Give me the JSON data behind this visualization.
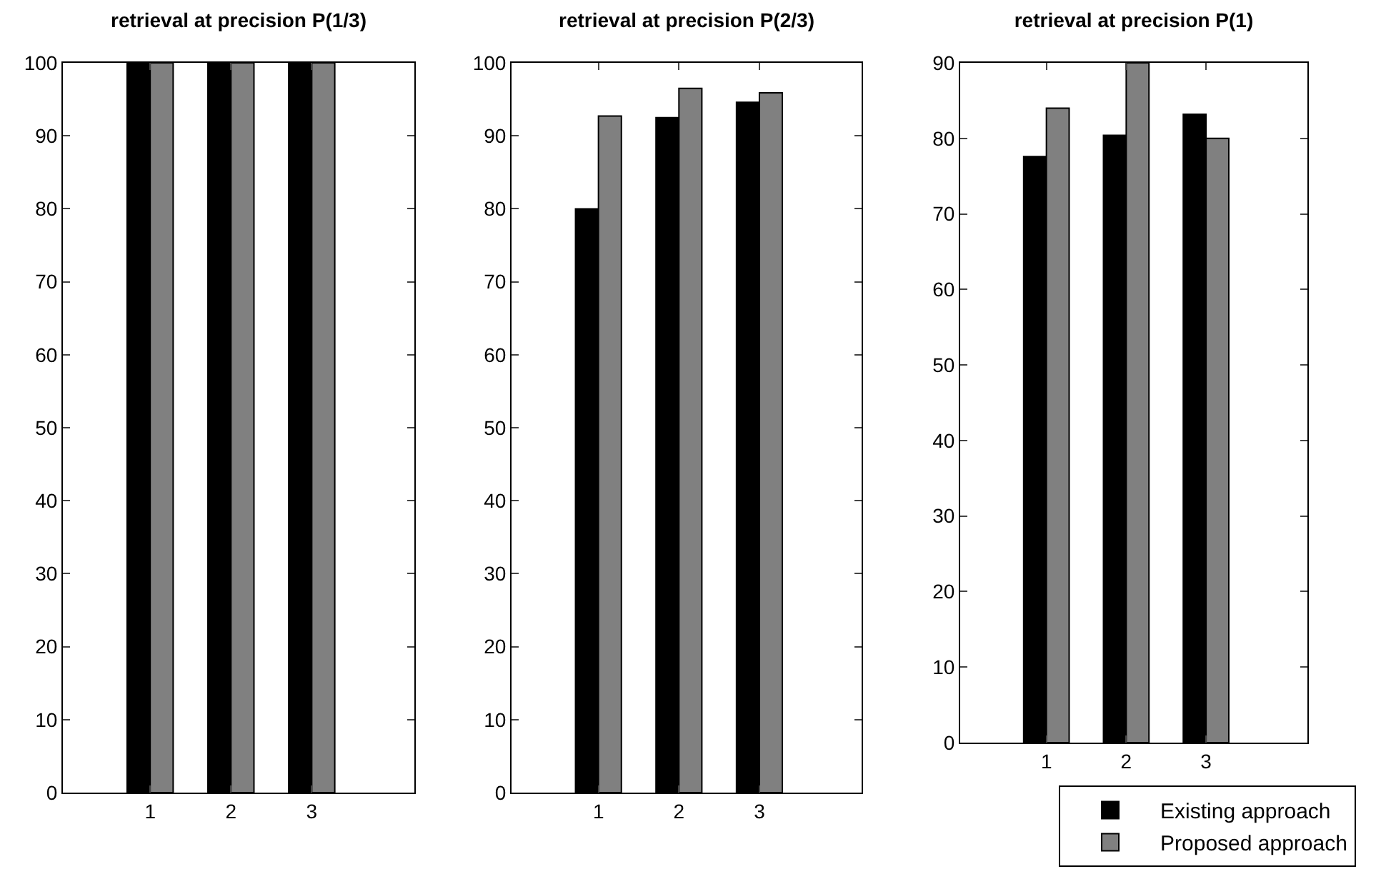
{
  "chart_data": [
    {
      "type": "bar",
      "title": "retrieval at precision P(1/3)",
      "categories": [
        "1",
        "2",
        "3"
      ],
      "series": [
        {
          "color": "#000000",
          "values": [
            100,
            100,
            100
          ]
        },
        {
          "color": "#808080",
          "values": [
            100,
            100,
            100
          ]
        }
      ],
      "ylim": [
        0,
        100
      ],
      "yticks": [
        0,
        10,
        20,
        30,
        40,
        50,
        60,
        70,
        80,
        90,
        100
      ],
      "grid": false,
      "legend": false
    },
    {
      "type": "bar",
      "title": "retrieval at precision P(2/3)",
      "categories": [
        "1",
        "2",
        "3"
      ],
      "series": [
        {
          "color": "#000000",
          "values": [
            80,
            92.5,
            94.6
          ]
        },
        {
          "color": "#808080",
          "values": [
            92.7,
            96.5,
            95.9
          ]
        }
      ],
      "ylim": [
        0,
        100
      ],
      "yticks": [
        0,
        10,
        20,
        30,
        40,
        50,
        60,
        70,
        80,
        90,
        100
      ],
      "grid": false,
      "legend": false
    },
    {
      "type": "bar",
      "title": "retrieval at precision P(1)",
      "categories": [
        "1",
        "2",
        "3"
      ],
      "series": [
        {
          "name": "Existing approach",
          "color": "#000000",
          "values": [
            77.6,
            80.4,
            83.2
          ]
        },
        {
          "name": "Proposed approach",
          "color": "#808080",
          "values": [
            84,
            90,
            80
          ]
        }
      ],
      "ylim": [
        0,
        90
      ],
      "yticks": [
        0,
        10,
        20,
        30,
        40,
        50,
        60,
        70,
        80,
        90
      ],
      "grid": false,
      "legend": "bottom right"
    }
  ]
}
